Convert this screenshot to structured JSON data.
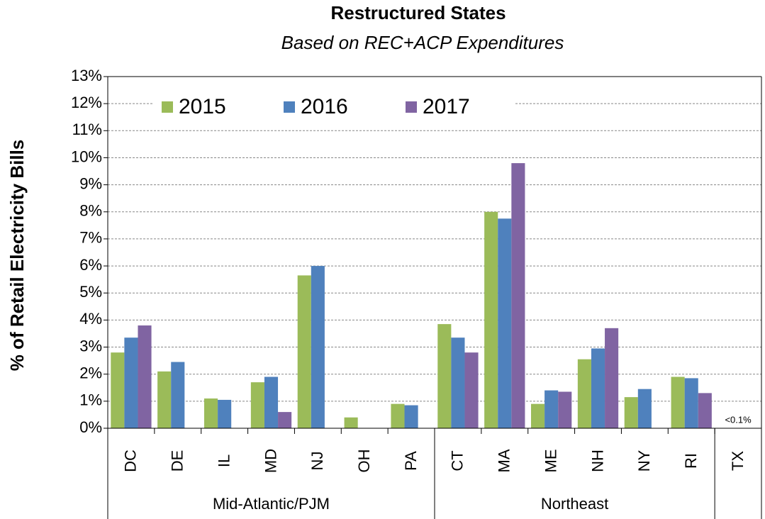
{
  "chart_data": {
    "type": "bar",
    "title": "Restructured States",
    "subtitle": "Based on REC+ACP Expenditures",
    "y_label": "% of Retail Electricity Bills",
    "categories": [
      "DC",
      "DE",
      "IL",
      "MD",
      "NJ",
      "OH",
      "PA",
      "CT",
      "MA",
      "ME",
      "NH",
      "NY",
      "RI",
      "TX"
    ],
    "groups": [
      {
        "name": "Mid-Atlantic/PJM",
        "count": 7
      },
      {
        "name": "Northeast",
        "count": 6
      },
      {
        "name": null,
        "count": 1
      }
    ],
    "series": [
      {
        "name": "2015",
        "color": "#9bbb59",
        "values": [
          2.8,
          2.1,
          1.1,
          1.7,
          5.65,
          0.4,
          0.9,
          3.85,
          8.0,
          0.9,
          2.55,
          1.15,
          1.9,
          null
        ]
      },
      {
        "name": "2016",
        "color": "#4f81bd",
        "values": [
          3.35,
          2.45,
          1.05,
          1.9,
          6.0,
          null,
          0.85,
          3.35,
          7.75,
          1.4,
          2.95,
          1.45,
          1.85,
          null
        ]
      },
      {
        "name": "2017",
        "color": "#8064a2",
        "values": [
          3.8,
          null,
          null,
          0.6,
          null,
          null,
          null,
          2.8,
          9.8,
          1.35,
          3.7,
          null,
          1.3,
          null
        ]
      }
    ],
    "annotations": [
      {
        "text": "<0.1%",
        "category": 13
      }
    ],
    "ylim": [
      0,
      13
    ],
    "yticks": [
      {
        "value": 0,
        "label": "0%"
      },
      {
        "value": 1,
        "label": "1%"
      },
      {
        "value": 2,
        "label": "2%"
      },
      {
        "value": 3,
        "label": "3%"
      },
      {
        "value": 4,
        "label": "4%"
      },
      {
        "value": 5,
        "label": "5%"
      },
      {
        "value": 6,
        "label": "6%"
      },
      {
        "value": 7,
        "label": "7%"
      },
      {
        "value": 8,
        "label": "8%"
      },
      {
        "value": 9,
        "label": "9%"
      },
      {
        "value": 10,
        "label": "10%"
      },
      {
        "value": 11,
        "label": "11%"
      },
      {
        "value": 12,
        "label": "12%"
      },
      {
        "value": 13,
        "label": "13%"
      }
    ],
    "grid": true,
    "legend": "upper left"
  }
}
